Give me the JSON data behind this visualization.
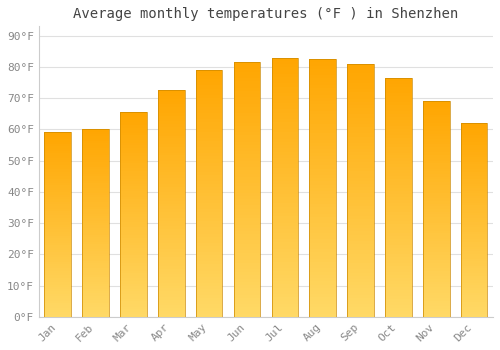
{
  "title": "Average monthly temperatures (°F ) in Shenzhen",
  "months": [
    "Jan",
    "Feb",
    "Mar",
    "Apr",
    "May",
    "Jun",
    "Jul",
    "Aug",
    "Sep",
    "Oct",
    "Nov",
    "Dec"
  ],
  "values": [
    59,
    60,
    65.5,
    72.5,
    79,
    81.5,
    83,
    82.5,
    81,
    76.5,
    69,
    62
  ],
  "bar_color_top": "#FFA500",
  "bar_color_bottom": "#FFD966",
  "bar_edge_color": "#CC8800",
  "background_color": "#ffffff",
  "grid_color": "#e0e0e0",
  "yticks": [
    0,
    10,
    20,
    30,
    40,
    50,
    60,
    70,
    80,
    90
  ],
  "ylim": [
    0,
    93
  ],
  "title_fontsize": 10,
  "tick_fontsize": 8,
  "font_color": "#888888",
  "font_family": "monospace",
  "bar_width": 0.7,
  "figsize": [
    5.0,
    3.5
  ],
  "dpi": 100
}
